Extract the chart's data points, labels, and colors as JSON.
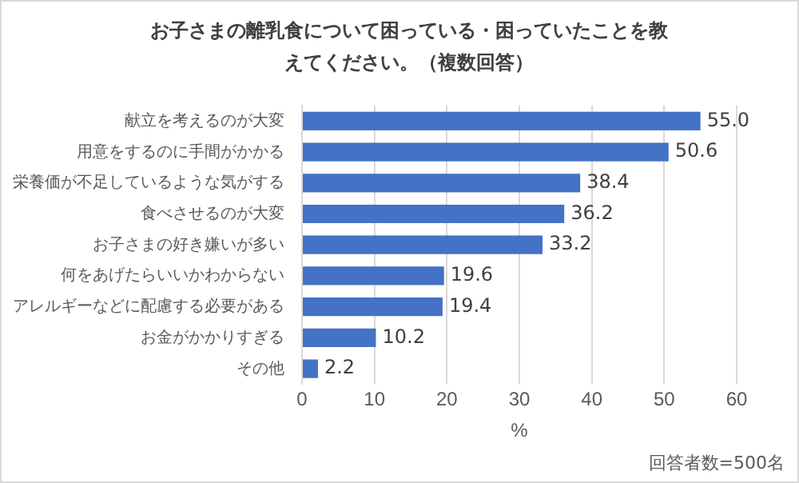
{
  "chart_data": {
    "type": "bar",
    "orientation": "horizontal",
    "title": "お子さまの離乳食について困っている・困っていたことを教えてください。（複数回答）",
    "categories": [
      "献立を考えるのが大変",
      "用意をするのに手間がかかる",
      "栄養価が不足しているような気がする",
      "食べさせるのが大変",
      "お子さまの好き嫌いが多い",
      "何をあげたらいいかわからない",
      "アレルギーなどに配慮する必要がある",
      "お金がかかりすぎる",
      "その他"
    ],
    "values": [
      55.0,
      50.6,
      38.4,
      36.2,
      33.2,
      19.6,
      19.4,
      10.2,
      2.2
    ],
    "value_labels": [
      "55.0",
      "50.6",
      "38.4",
      "36.2",
      "33.2",
      "19.6",
      "19.4",
      "10.2",
      "2.2"
    ],
    "color": "#4472c4",
    "xlim": [
      0,
      60
    ],
    "xticks": [
      0,
      10,
      20,
      30,
      40,
      50,
      60
    ],
    "xlabel": "%",
    "grid": "x",
    "annotations": [
      "回答者数=500名"
    ]
  }
}
